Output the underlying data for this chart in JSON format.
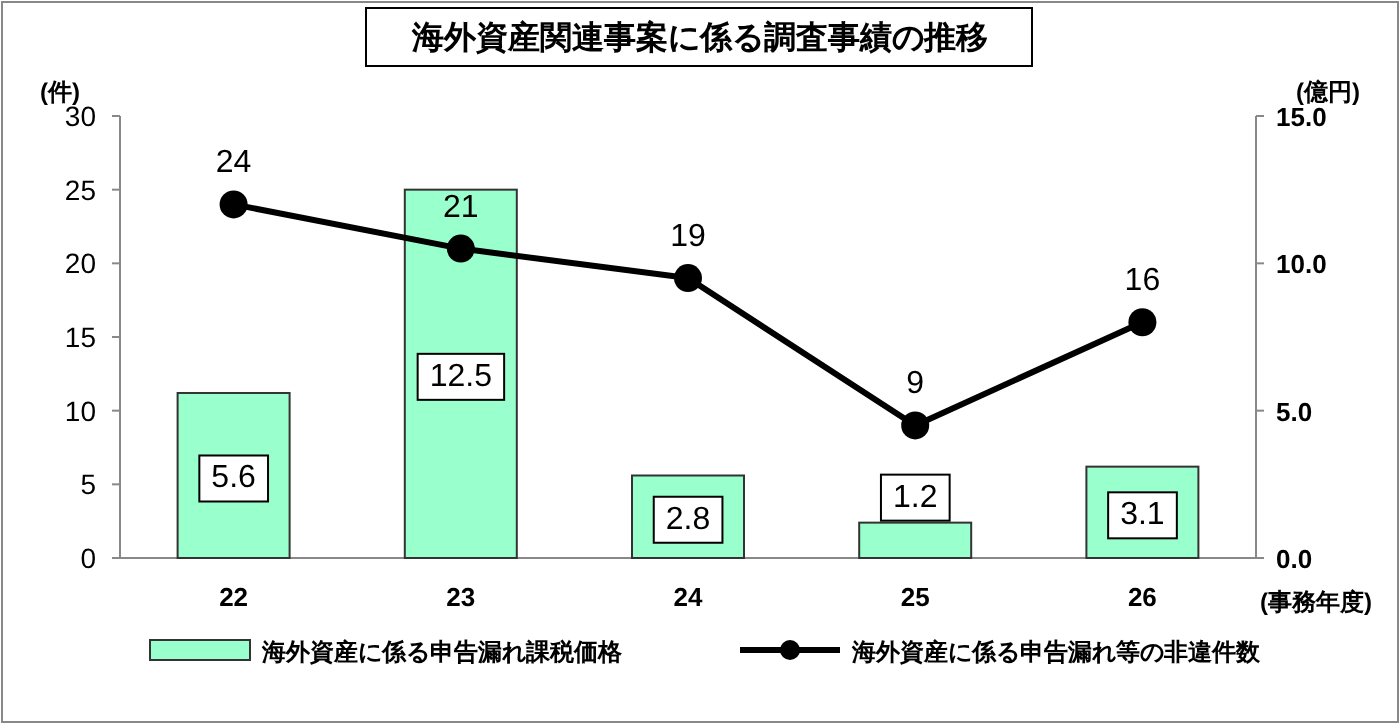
{
  "chart_data": {
    "type": "bar",
    "title": "海外資産関連事案に係る調査事績の推移",
    "ylabel": "(件)",
    "y2label": "(億円)",
    "xlabel": "(事務年度)",
    "categories": [
      "22",
      "23",
      "24",
      "25",
      "26"
    ],
    "series": [
      {
        "name": "海外資産に係る申告漏れ課税価格",
        "axis": "y2",
        "color": "#99ffcc",
        "values": [
          5.6,
          12.5,
          2.8,
          1.2,
          3.1
        ]
      },
      {
        "name": "海外資産に係る申告漏れ等の非違件数",
        "type": "line",
        "color": "#000000",
        "values": [
          24,
          21,
          19,
          9,
          16
        ]
      }
    ],
    "ylim": [
      0,
      30
    ],
    "yticks": [
      0,
      5,
      10,
      15,
      20,
      25,
      30
    ],
    "y2lim": [
      0,
      15
    ],
    "y2ticks": [
      {
        "value": 0,
        "label": "0.0"
      },
      {
        "value": 5,
        "label": "5.0"
      },
      {
        "value": 10,
        "label": "10.0"
      },
      {
        "value": 15,
        "label": "15.0"
      }
    ],
    "data_labels": true,
    "legend": "bottom",
    "marker": "circle",
    "grid": false
  }
}
